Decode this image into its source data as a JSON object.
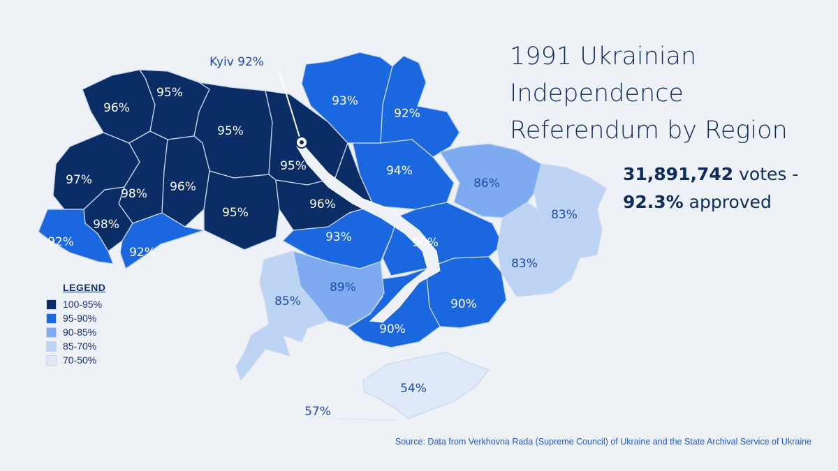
{
  "title_lines": [
    "1991 Ukrainian",
    "Independence",
    "Referendum by Region"
  ],
  "stats": {
    "votes_value": "31,891,742",
    "votes_suffix": " votes -",
    "approved_value": "92.3%",
    "approved_suffix": " approved"
  },
  "legend": {
    "title": "LEGEND",
    "items": [
      {
        "label": "100-95%",
        "color": "#0b2d66"
      },
      {
        "label": "95-90%",
        "color": "#1b67e0"
      },
      {
        "label": "90-85%",
        "color": "#7eabef"
      },
      {
        "label": "85-70%",
        "color": "#bdd3f4"
      },
      {
        "label": "70-50%",
        "color": "#dfe9f9"
      }
    ]
  },
  "kyiv_label": "Kyiv 92%",
  "regions": [
    {
      "label": "96%",
      "tier": 0
    },
    {
      "label": "95%",
      "tier": 0
    },
    {
      "label": "95%",
      "tier": 0
    },
    {
      "label": "95%",
      "tier": 0
    },
    {
      "label": "97%",
      "tier": 0
    },
    {
      "label": "98%",
      "tier": 0
    },
    {
      "label": "96%",
      "tier": 0
    },
    {
      "label": "95%",
      "tier": 0
    },
    {
      "label": "98%",
      "tier": 0
    },
    {
      "label": "96%",
      "tier": 0
    },
    {
      "label": "92%",
      "tier": 1
    },
    {
      "label": "92%",
      "tier": 1
    },
    {
      "label": "93%",
      "tier": 1
    },
    {
      "label": "92%",
      "tier": 1
    },
    {
      "label": "94%",
      "tier": 1
    },
    {
      "label": "93%",
      "tier": 1
    },
    {
      "label": "90%",
      "tier": 1
    },
    {
      "label": "90%",
      "tier": 1
    },
    {
      "label": "90%",
      "tier": 1
    },
    {
      "label": "86%",
      "tier": 2
    },
    {
      "label": "89%",
      "tier": 2
    },
    {
      "label": "83%",
      "tier": 3
    },
    {
      "label": "83%",
      "tier": 3
    },
    {
      "label": "85%",
      "tier": 3
    },
    {
      "label": "54%",
      "tier": 4
    },
    {
      "label": "57%",
      "tier": 4
    }
  ],
  "source": "Source: Data from Verkhovna Rada (Supreme Council) of Ukraine and the State Archival Service of Ukraine"
}
